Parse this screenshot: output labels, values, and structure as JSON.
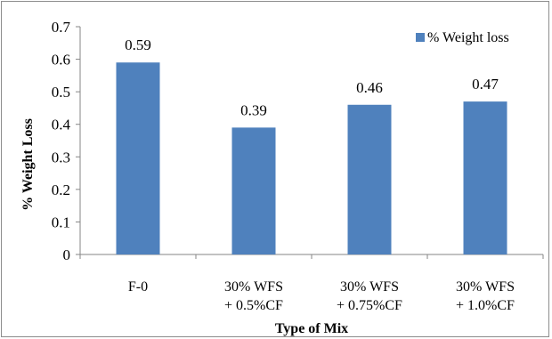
{
  "chart_data": {
    "type": "bar",
    "ylabel": "% Weight Loss",
    "xlabel": "Type of Mix",
    "categories": [
      [
        "F-0"
      ],
      [
        "30% WFS",
        "+ 0.5%CF"
      ],
      [
        "30% WFS",
        "+ 0.75%CF"
      ],
      [
        "30% WFS",
        "+ 1.0%CF"
      ]
    ],
    "series": [
      {
        "name": "% Weight loss",
        "values": [
          0.59,
          0.39,
          0.46,
          0.47
        ],
        "color": "#4f81bd"
      }
    ],
    "data_labels": [
      "0.59",
      "0.39",
      "0.46",
      "0.47"
    ],
    "ylim": [
      0,
      0.7
    ],
    "yticks": [
      "0",
      "0.1",
      "0.2",
      "0.3",
      "0.4",
      "0.5",
      "0.6",
      "0.7"
    ],
    "grid": false,
    "legend_position": "top-right"
  }
}
